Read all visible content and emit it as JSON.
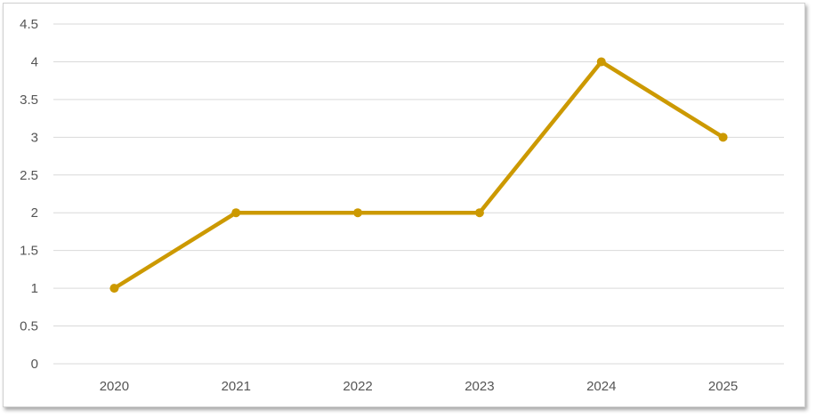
{
  "chart_data": {
    "type": "line",
    "title": "",
    "xlabel": "",
    "ylabel": "",
    "categories": [
      "2020",
      "2021",
      "2022",
      "2023",
      "2024",
      "2025"
    ],
    "series": [
      {
        "values": [
          1,
          2,
          2,
          2,
          4,
          3
        ],
        "color": "#cc9900"
      }
    ],
    "ylim": [
      0,
      4.5
    ],
    "yticks": [
      "0",
      "0.5",
      "1",
      "1.5",
      "2",
      "2.5",
      "3",
      "3.5",
      "4",
      "4.5"
    ],
    "grid": true,
    "legend": "none",
    "gridline_color": "#d9d9d9"
  }
}
